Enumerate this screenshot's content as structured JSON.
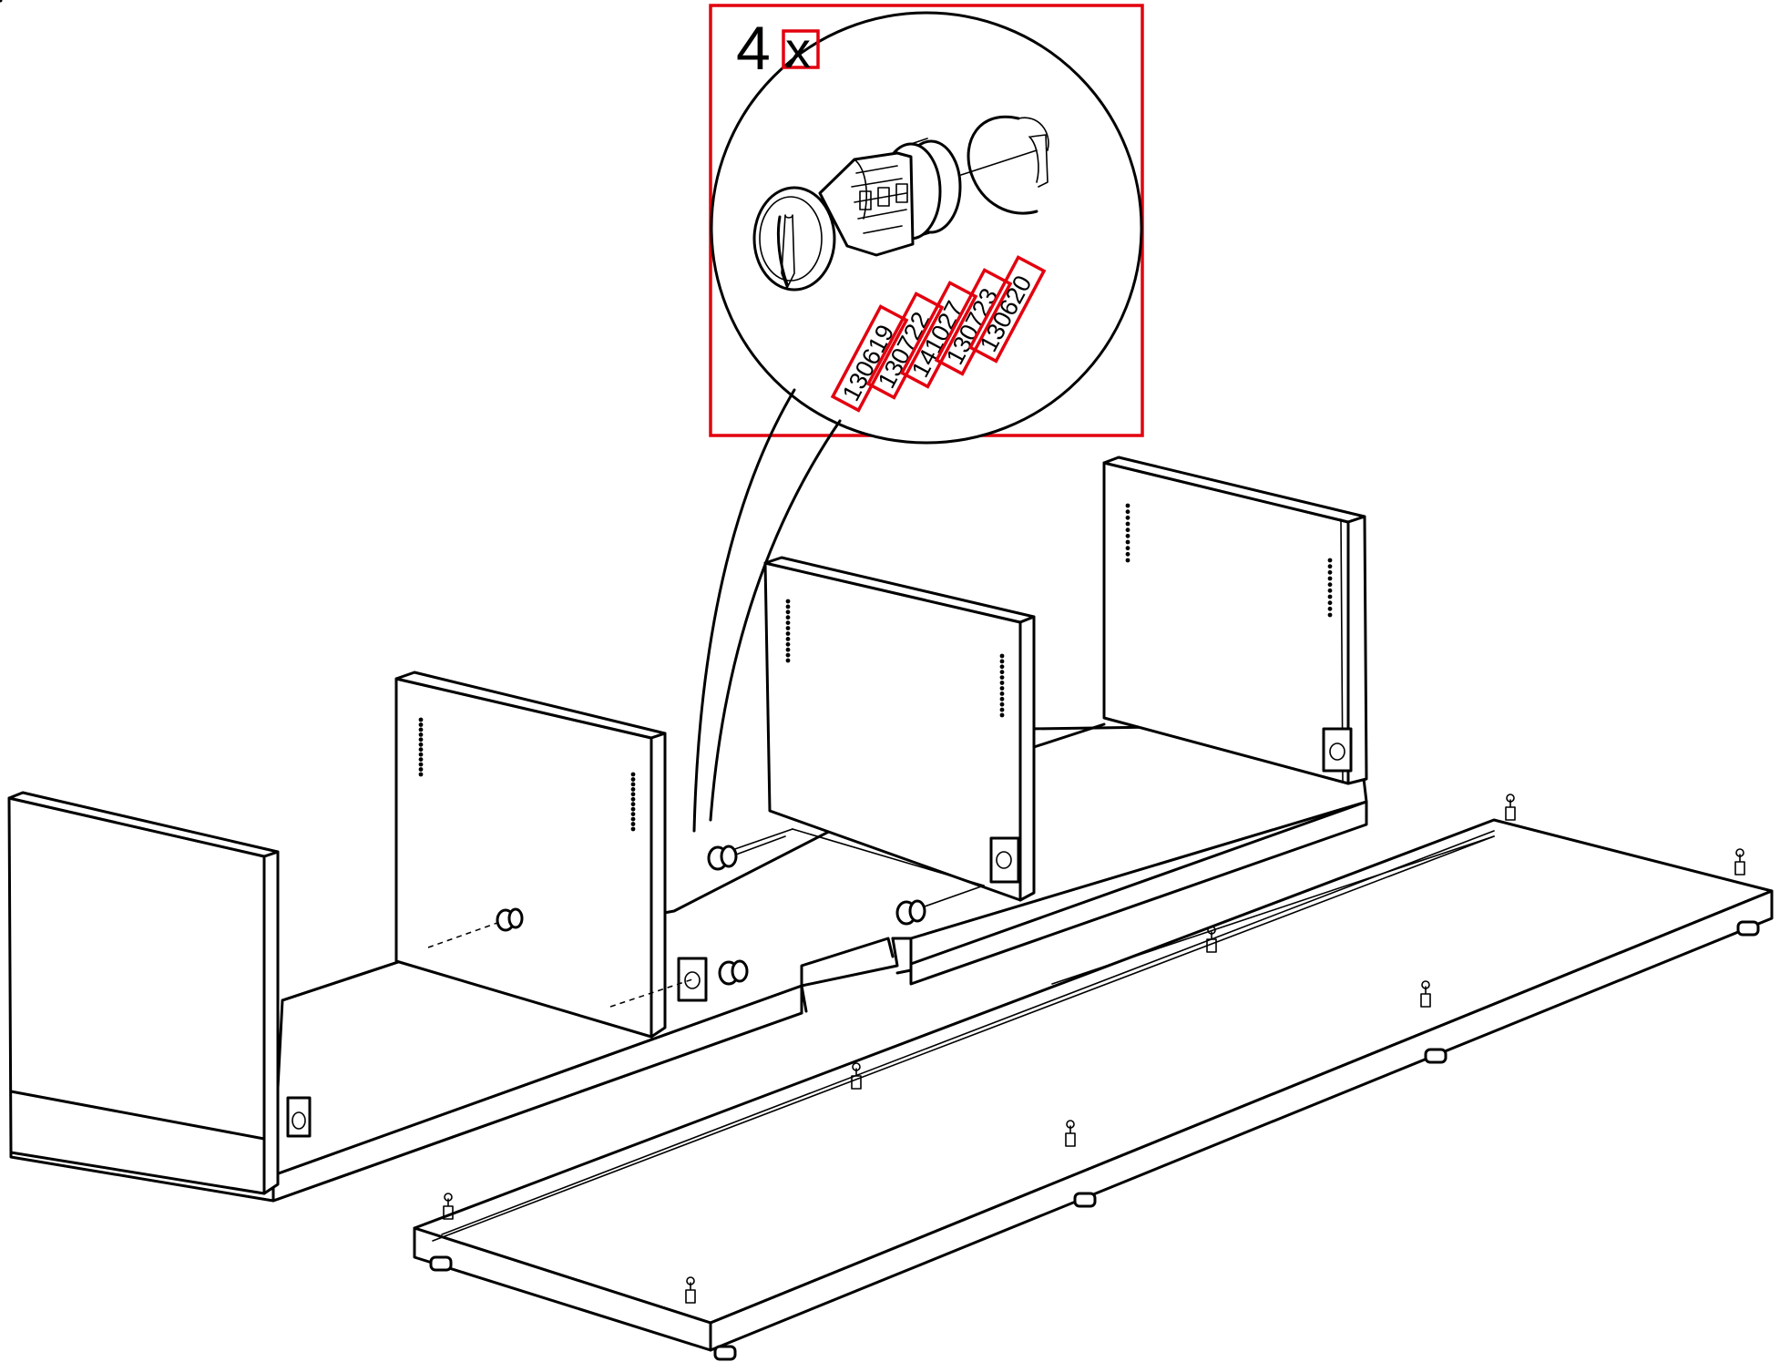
{
  "callout": {
    "quantity": "4",
    "multiplier": "x",
    "part_numbers": [
      "130619",
      "130722",
      "141027",
      "130723",
      "130620"
    ]
  },
  "colors": {
    "highlight": "#e3000f",
    "line": "#000000",
    "background": "#ffffff"
  },
  "icons": {
    "fitting": "cam-lock-dowel-icon",
    "leg": "adjustable-foot-icon"
  }
}
